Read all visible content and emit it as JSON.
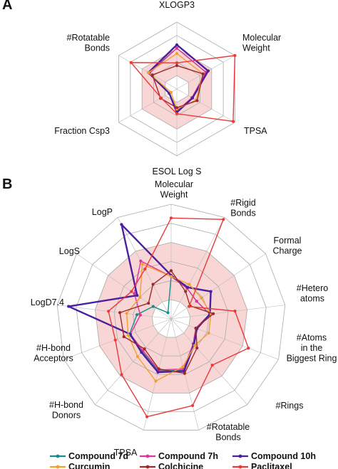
{
  "panels": [
    {
      "label": "A"
    },
    {
      "label": "B"
    }
  ],
  "colors": {
    "compound_7d": "#1a8a8a",
    "compound_7h": "#e0339a",
    "compound_10h": "#4b1f9e",
    "curcumin": "#f0a030",
    "colchicine": "#a02828",
    "paclitaxel": "#e83a3a",
    "ring_fill": "#f9d6d6",
    "grid": "#aaaaaa"
  },
  "chart_data": [
    {
      "type": "radar",
      "panel": "A",
      "axes": [
        "XLOGP3",
        "Molecular\nWeight",
        "TPSA",
        "ESOL Log S",
        "Fraction Csp3",
        "#Rotatable\nBonds"
      ],
      "rings": 5,
      "max": 1.0,
      "shaded_band": [
        0.2,
        0.6
      ],
      "grid": true,
      "series": [
        {
          "name": "Compound 7d",
          "values": [
            0.61,
            0.5,
            0.26,
            0.34,
            0.13,
            0.48
          ]
        },
        {
          "name": "Compound 7h",
          "values": [
            0.61,
            0.5,
            0.26,
            0.33,
            0.13,
            0.47
          ]
        },
        {
          "name": "Compound 10h",
          "values": [
            0.66,
            0.54,
            0.27,
            0.35,
            0.13,
            0.49
          ]
        },
        {
          "name": "Curcumin",
          "values": [
            0.53,
            0.45,
            0.33,
            0.3,
            0.1,
            0.49
          ]
        },
        {
          "name": "Colchicine",
          "values": [
            0.35,
            0.45,
            0.35,
            0.28,
            0.28,
            0.42
          ]
        },
        {
          "name": "Paclitaxel",
          "values": [
            0.39,
            1.0,
            0.97,
            0.37,
            0.27,
            0.79
          ]
        }
      ]
    },
    {
      "type": "radar",
      "panel": "B",
      "axes": [
        "Molecular\nWeight",
        "#Rigid\nBonds",
        "Formal\nCharge",
        "#Hetero\natoms",
        "#Atoms\nin the\nBiggest Ring",
        "#Rings",
        "#Rotatable\nBonds",
        "TPSA",
        "#H-bond\nDonors",
        "#H-bond\nAcceptors",
        "LogD7.4",
        "LogS",
        "LogP"
      ],
      "rings": 6,
      "max": 1.0,
      "shaded_band": [
        0.17,
        0.67
      ],
      "grid": true,
      "series": [
        {
          "name": "Compound 7d",
          "values": [
            0.37,
            0.3,
            0.27,
            0.34,
            0.23,
            0.29,
            0.46,
            0.47,
            0.38,
            0.39,
            0.3,
            0.19,
            0.06
          ]
        },
        {
          "name": "Compound 7h",
          "values": [
            0.37,
            0.3,
            0.27,
            0.34,
            0.23,
            0.29,
            0.45,
            0.46,
            0.37,
            0.38,
            0.27,
            0.39,
            0.57
          ]
        },
        {
          "name": "Compound 10h",
          "values": [
            0.38,
            0.31,
            0.42,
            0.34,
            0.24,
            0.3,
            0.47,
            0.48,
            0.39,
            0.38,
            0.9,
            0.36,
            0.93
          ]
        },
        {
          "name": "Curcumin",
          "values": [
            0.37,
            0.34,
            0.32,
            0.35,
            0.35,
            0.31,
            0.43,
            0.56,
            0.44,
            0.4,
            0.39,
            0.33,
            0.54
          ]
        },
        {
          "name": "Colchicine",
          "values": [
            0.42,
            0.27,
            0.2,
            0.37,
            0.23,
            0.34,
            0.49,
            0.45,
            0.35,
            0.44,
            0.45,
            0.24,
            0.34
          ]
        },
        {
          "name": "Paclitaxel",
          "values": [
            0.88,
            0.98,
            0.19,
            0.56,
            0.72,
            0.54,
            0.78,
            0.88,
            0.65,
            0.52,
            0.55,
            0.42,
            0.49
          ]
        }
      ],
      "legend": {
        "position": "bottom",
        "entries": [
          "Compound 7d",
          "Compound 7h",
          "Compound 10h",
          "Curcumin",
          "Colchicine",
          "Paclitaxel"
        ]
      }
    }
  ]
}
